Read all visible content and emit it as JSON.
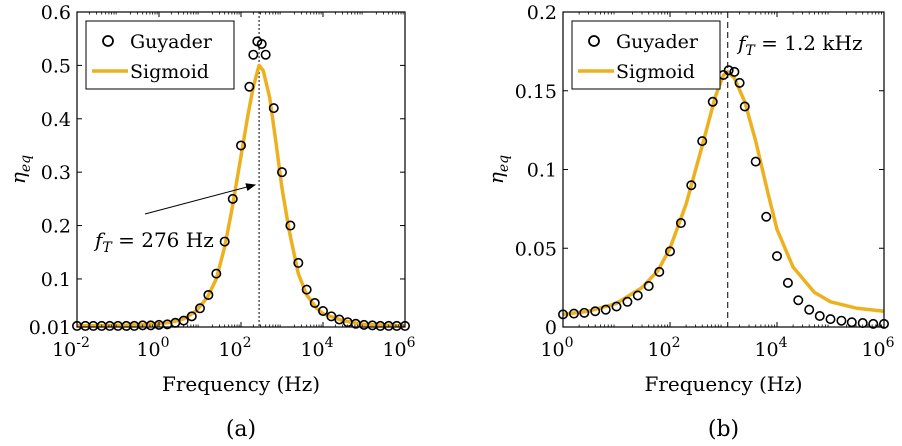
{
  "colors": {
    "guyader": "#000000",
    "sigmoid": "#EDB120",
    "axes": "#000000"
  },
  "chart_data": [
    {
      "type": "line",
      "caption": "(a)",
      "xlabel": "Frequency (Hz)",
      "ylabel": "η",
      "ylabel_sub": "eq",
      "xscale": "log",
      "xlim": [
        0.01,
        1000000
      ],
      "ylim": [
        0.01,
        0.6
      ],
      "xticks": [
        {
          "value": 0.01,
          "base": "10",
          "exp": "-2"
        },
        {
          "value": 1,
          "base": "10",
          "exp": "0"
        },
        {
          "value": 100,
          "base": "10",
          "exp": "2"
        },
        {
          "value": 10000,
          "base": "10",
          "exp": "4"
        },
        {
          "value": 1000000,
          "base": "10",
          "exp": "6"
        }
      ],
      "yticks": [
        "0.01",
        "0.1",
        "0.2",
        "0.3",
        "0.4",
        "0.5",
        "0.6"
      ],
      "ytick_values": [
        0.01,
        0.1,
        0.2,
        0.3,
        0.4,
        0.5,
        0.6
      ],
      "legend": {
        "position": "top-left",
        "entries": [
          "Guyader",
          "Sigmoid"
        ]
      },
      "vline": {
        "x": 276,
        "style": "dotted"
      },
      "annotation": {
        "prefix": "f",
        "sub": "T",
        "text": " = 276 Hz",
        "arrow_to": {
          "x": 276,
          "y": 0.28
        }
      },
      "series": [
        {
          "name": "Guyader",
          "style": "markers",
          "x": [
            0.01,
            0.016,
            0.025,
            0.04,
            0.063,
            0.1,
            0.16,
            0.25,
            0.4,
            0.63,
            1,
            1.6,
            2.5,
            4,
            6.3,
            10,
            16,
            25,
            40,
            63,
            100,
            160,
            200,
            250,
            320,
            400,
            630,
            1000,
            1600,
            2500,
            4000,
            6300,
            10000,
            16000,
            25000,
            40000,
            63000,
            100000,
            160000,
            250000,
            400000,
            630000,
            1000000
          ],
          "y": [
            0.012,
            0.012,
            0.012,
            0.012,
            0.012,
            0.012,
            0.012,
            0.012,
            0.013,
            0.013,
            0.014,
            0.015,
            0.018,
            0.022,
            0.03,
            0.045,
            0.07,
            0.11,
            0.17,
            0.25,
            0.35,
            0.46,
            0.52,
            0.545,
            0.54,
            0.52,
            0.42,
            0.3,
            0.2,
            0.13,
            0.08,
            0.055,
            0.04,
            0.03,
            0.024,
            0.019,
            0.016,
            0.014,
            0.013,
            0.012,
            0.012,
            0.012,
            0.012
          ]
        },
        {
          "name": "Sigmoid",
          "style": "line",
          "x": [
            0.01,
            0.1,
            0.3,
            1,
            2,
            4,
            8,
            15,
            25,
            40,
            60,
            100,
            150,
            200,
            276,
            350,
            500,
            700,
            1000,
            1500,
            2500,
            4000,
            7000,
            10000,
            30000,
            100000,
            1000000
          ],
          "y": [
            0.012,
            0.013,
            0.014,
            0.016,
            0.019,
            0.025,
            0.04,
            0.065,
            0.1,
            0.16,
            0.23,
            0.33,
            0.41,
            0.46,
            0.5,
            0.49,
            0.44,
            0.36,
            0.27,
            0.19,
            0.11,
            0.07,
            0.045,
            0.035,
            0.022,
            0.015,
            0.012
          ]
        }
      ]
    },
    {
      "type": "line",
      "caption": "(b)",
      "xlabel": "Frequency (Hz)",
      "ylabel": "η",
      "ylabel_sub": "eq",
      "xscale": "log",
      "xlim": [
        1,
        1000000
      ],
      "ylim": [
        0,
        0.2
      ],
      "xticks": [
        {
          "value": 1,
          "base": "10",
          "exp": "0"
        },
        {
          "value": 100,
          "base": "10",
          "exp": "2"
        },
        {
          "value": 10000,
          "base": "10",
          "exp": "4"
        },
        {
          "value": 1000000,
          "base": "10",
          "exp": "6"
        }
      ],
      "yticks": [
        "0",
        "0.05",
        "0.1",
        "0.15",
        "0.2"
      ],
      "ytick_values": [
        0,
        0.05,
        0.1,
        0.15,
        0.2
      ],
      "legend": {
        "position": "top-left",
        "entries": [
          "Guyader",
          "Sigmoid"
        ]
      },
      "vline": {
        "x": 1200,
        "style": "dashed"
      },
      "annotation": {
        "prefix": "f",
        "sub": "T",
        "text": " = 1.2 kHz"
      },
      "series": [
        {
          "name": "Guyader",
          "style": "markers",
          "x": [
            1,
            1.6,
            2.5,
            4,
            6.3,
            10,
            16,
            25,
            40,
            63,
            100,
            160,
            250,
            400,
            630,
            1000,
            1250,
            1600,
            2000,
            2500,
            4000,
            6300,
            10000,
            16000,
            25000,
            40000,
            63000,
            100000,
            160000,
            250000,
            400000,
            630000,
            1000000
          ],
          "y": [
            0.008,
            0.0085,
            0.009,
            0.01,
            0.011,
            0.013,
            0.016,
            0.02,
            0.026,
            0.035,
            0.048,
            0.066,
            0.09,
            0.118,
            0.143,
            0.16,
            0.163,
            0.162,
            0.155,
            0.14,
            0.105,
            0.07,
            0.045,
            0.028,
            0.017,
            0.011,
            0.007,
            0.005,
            0.004,
            0.003,
            0.0025,
            0.002,
            0.002
          ]
        },
        {
          "name": "Sigmoid",
          "style": "line",
          "x": [
            1,
            3,
            10,
            30,
            60,
            100,
            200,
            400,
            700,
            1000,
            1200,
            1600,
            2500,
            4000,
            7000,
            10000,
            20000,
            50000,
            100000,
            300000,
            1000000
          ],
          "y": [
            0.008,
            0.01,
            0.015,
            0.025,
            0.036,
            0.05,
            0.078,
            0.115,
            0.146,
            0.16,
            0.162,
            0.158,
            0.143,
            0.118,
            0.083,
            0.062,
            0.038,
            0.022,
            0.016,
            0.012,
            0.01
          ]
        }
      ]
    }
  ]
}
